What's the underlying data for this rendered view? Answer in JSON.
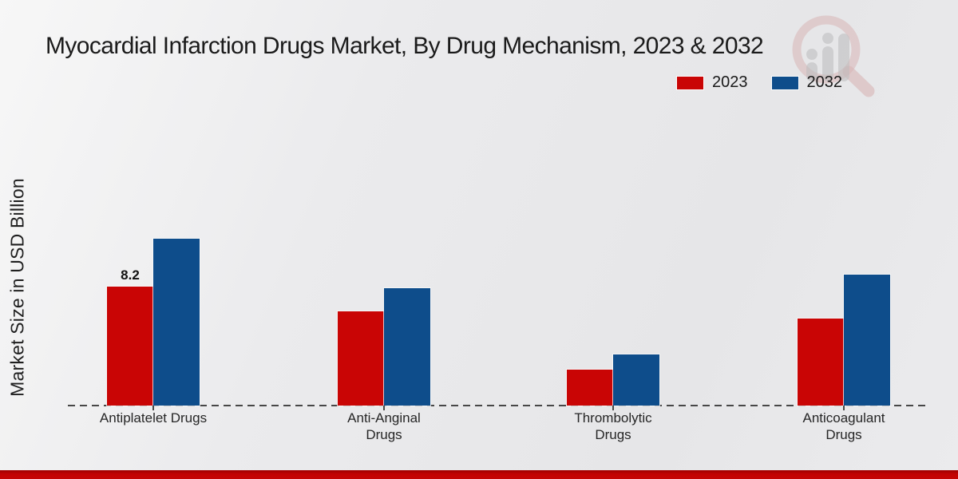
{
  "chart_data": {
    "type": "bar",
    "title": "Myocardial Infarction Drugs Market, By Drug Mechanism, 2023 & 2032",
    "ylabel": "Market Size in USD Billion",
    "categories": [
      "Antiplatelet Drugs",
      "Anti-Anginal Drugs",
      "Thrombolytic Drugs",
      "Anticoagulant Drugs"
    ],
    "series": [
      {
        "name": "2023",
        "color": "#c90505",
        "values": [
          8.2,
          6.5,
          2.5,
          6.0
        ]
      },
      {
        "name": "2032",
        "color": "#0e4d8b",
        "values": [
          11.5,
          8.1,
          3.5,
          9.0
        ]
      }
    ],
    "point_labels": [
      {
        "series": "2023",
        "category_index": 0,
        "text": "8.2"
      }
    ],
    "legend_position": "top-right",
    "grid": false,
    "x_baseline_style": "dashed",
    "y_axis_ticks_visible": false,
    "ylim": [
      0,
      12.5
    ]
  },
  "branding": {
    "watermark_icon": "magnifier-bar-chart-logo",
    "watermark_ring_color": "#d49a9a",
    "watermark_bars_color": "#a8a8a8",
    "bottom_band_color": "#c20303"
  }
}
